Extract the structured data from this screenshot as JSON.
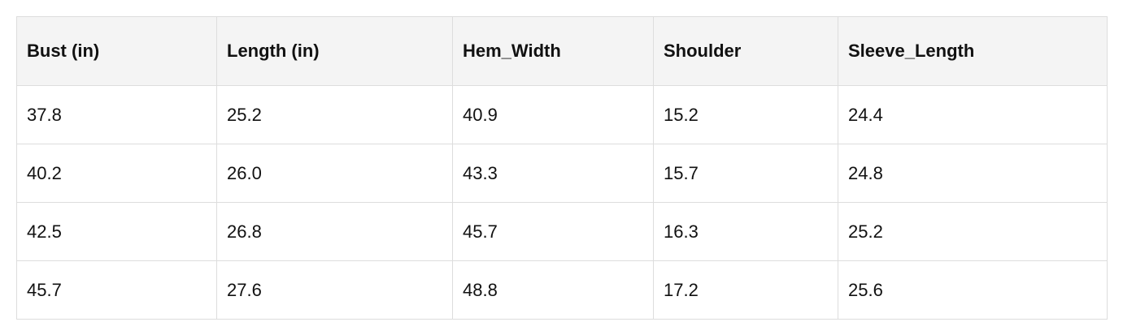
{
  "table": {
    "headers": [
      "Bust (in)",
      "Length (in)",
      "Hem_Width",
      "Shoulder",
      "Sleeve_Length"
    ],
    "rows": [
      [
        "37.8",
        "25.2",
        "40.9",
        "15.2",
        "24.4"
      ],
      [
        "40.2",
        "26.0",
        "43.3",
        "15.7",
        "24.8"
      ],
      [
        "42.5",
        "26.8",
        "45.7",
        "16.3",
        "25.2"
      ],
      [
        "45.7",
        "27.6",
        "48.8",
        "17.2",
        "25.6"
      ]
    ]
  }
}
